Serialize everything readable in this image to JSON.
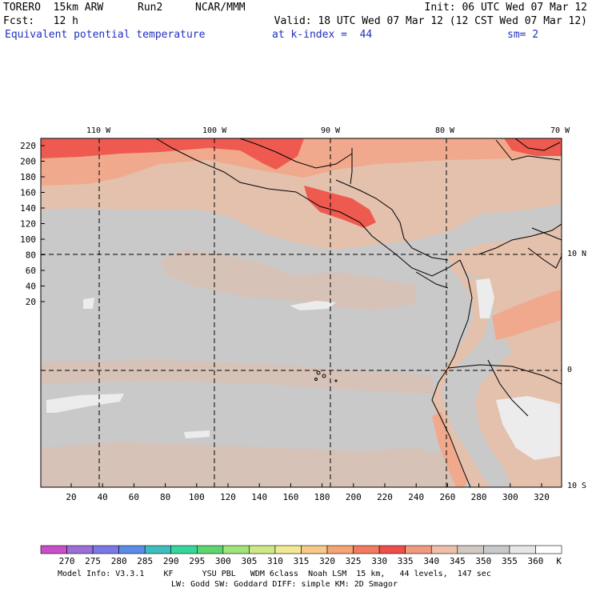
{
  "header": {
    "model": "TORERO  15km ARW",
    "run": "Run2",
    "org": "NCAR/MMM",
    "init": "Init: 06 UTC Wed 07 Mar 12",
    "fcst": "Fcst:   12 h",
    "valid": "Valid: 18 UTC Wed 07 Mar 12 (12 CST Wed 07 Mar 12)",
    "field": "Equivalent potential temperature",
    "level": "at k-index =  44",
    "smooth": "sm= 2"
  },
  "map": {
    "lon_labels": [
      "110 W",
      "100 W",
      "90 W",
      "80 W",
      "70 W"
    ],
    "lat_labels": [
      "10 N",
      "0",
      "10 S"
    ],
    "y_ticks": [
      "220",
      "200",
      "180",
      "160",
      "140",
      "120",
      "100",
      "80",
      "60",
      "40",
      "20"
    ],
    "x_ticks": [
      "20",
      "40",
      "60",
      "80",
      "100",
      "120",
      "140",
      "160",
      "180",
      "200",
      "220",
      "240",
      "260",
      "280",
      "300",
      "320"
    ],
    "ocean_color": "#c9c9c9",
    "land_color": "#e3c1ad"
  },
  "colorbar": {
    "values": [
      "270",
      "275",
      "280",
      "285",
      "290",
      "295",
      "300",
      "305",
      "310",
      "315",
      "320",
      "325",
      "330",
      "335",
      "340",
      "345",
      "350",
      "355",
      "360"
    ],
    "unit": "K",
    "colors": [
      "#c94fc9",
      "#9b6fd6",
      "#7a78e6",
      "#5a8ce8",
      "#3dbdbd",
      "#35d69a",
      "#5ed66f",
      "#a0e37a",
      "#cfe887",
      "#f2e995",
      "#f6c98a",
      "#f6a375",
      "#f27a5f",
      "#ee4f4a",
      "#f09a80",
      "#eebfa9",
      "#d0c8c2",
      "#c9c9c9",
      "#e6e6e6",
      "#ffffff"
    ]
  },
  "footer": {
    "line1": "Model Info: V3.3.1    KF      YSU PBL   WDM 6class  Noah LSM  15 km,   44 levels,  147 sec",
    "line2": "LW: Godd SW: Goddard DIFF: simple KM: 2D Smagor"
  }
}
